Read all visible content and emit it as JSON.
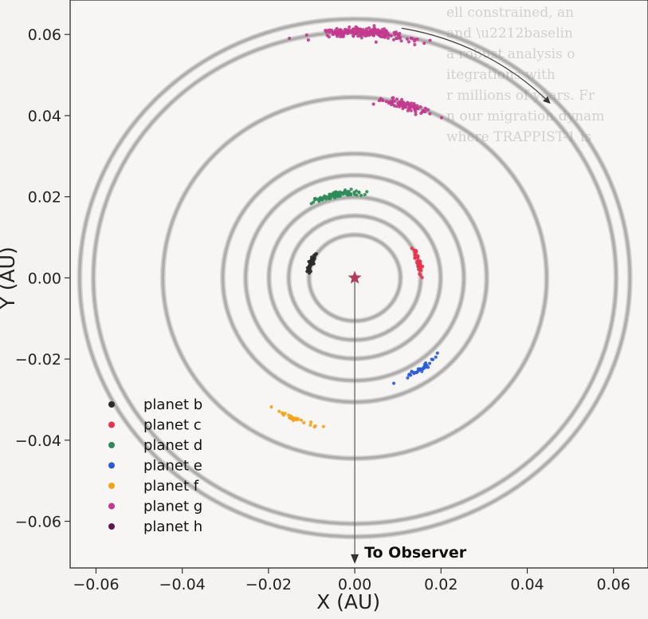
{
  "chart_data": {
    "type": "scatter",
    "title": "",
    "xlabel": "X (AU)",
    "ylabel": "Y (AU)",
    "xlim": [
      -0.066,
      0.068
    ],
    "ylim": [
      -0.0715,
      0.0685
    ],
    "xticks": [
      -0.06,
      -0.04,
      -0.02,
      0.0,
      0.02,
      0.04,
      0.06
    ],
    "xtick_labels": [
      "−0.06",
      "−0.04",
      "−0.02",
      "0.00",
      "0.02",
      "0.04",
      "0.06"
    ],
    "yticks": [
      -0.06,
      -0.04,
      -0.02,
      0.0,
      0.02,
      0.04,
      0.06
    ],
    "ytick_labels": [
      "−0.06",
      "−0.04",
      "−0.02",
      "0.00",
      "0.02",
      "0.04",
      "0.06"
    ],
    "grid": false,
    "legend_position": "bottom-left",
    "orbit_radii": [
      0.0106,
      0.0153,
      0.0199,
      0.0253,
      0.0306,
      0.0445,
      0.0606,
      0.0638
    ],
    "star": {
      "x": 0.0,
      "y": 0.0,
      "color": "#b43a5a"
    },
    "annotations": [
      {
        "text": "To Observer",
        "from": [
          0.0,
          0.0
        ],
        "to": [
          0.0,
          -0.0705
        ]
      }
    ],
    "orbit_direction_arrow": {
      "center": [
        0.0,
        0.0
      ],
      "radius": 0.0625,
      "start_deg": 80,
      "end_deg": 45
    },
    "series": [
      {
        "name": "planet b",
        "color": "#2b2b2b",
        "cluster": {
          "x": -0.0103,
          "y": 0.0033,
          "spread_along": 0.0032,
          "spread_across": 0.0006,
          "n": 40
        }
      },
      {
        "name": "planet c",
        "color": "#e8334f",
        "cluster": {
          "x": 0.0148,
          "y": 0.0038,
          "spread_along": 0.004,
          "spread_across": 0.0006,
          "n": 45
        }
      },
      {
        "name": "planet d",
        "color": "#2e8b57",
        "cluster": {
          "x": -0.0045,
          "y": 0.0205,
          "spread_along": 0.007,
          "spread_across": 0.0009,
          "n": 90
        }
      },
      {
        "name": "planet e",
        "color": "#2a5bd7",
        "cluster": {
          "x": 0.0153,
          "y": -0.0225,
          "spread_along": 0.0045,
          "spread_across": 0.0006,
          "n": 35
        }
      },
      {
        "name": "planet f",
        "color": "#f5a21b",
        "cluster": {
          "x": -0.0145,
          "y": -0.0345,
          "spread_along": 0.006,
          "spread_across": 0.0006,
          "n": 30
        }
      },
      {
        "name": "planet g",
        "color": "#c23a8e",
        "cluster": {
          "x": 0.0115,
          "y": 0.0427,
          "spread_along": 0.007,
          "spread_across": 0.001,
          "n": 80
        }
      },
      {
        "name": "planet h",
        "color": "#5a1a4e",
        "cluster": {
          "x": 0.0,
          "y": 0.0,
          "spread_along": 0.0,
          "spread_across": 0.0,
          "n": 0
        }
      },
      {
        "name": "",
        "color": "#c23a8e",
        "cluster": {
          "x": 0.002,
          "y": 0.0605,
          "spread_along": 0.012,
          "spread_across": 0.0012,
          "n": 220
        }
      }
    ]
  }
}
